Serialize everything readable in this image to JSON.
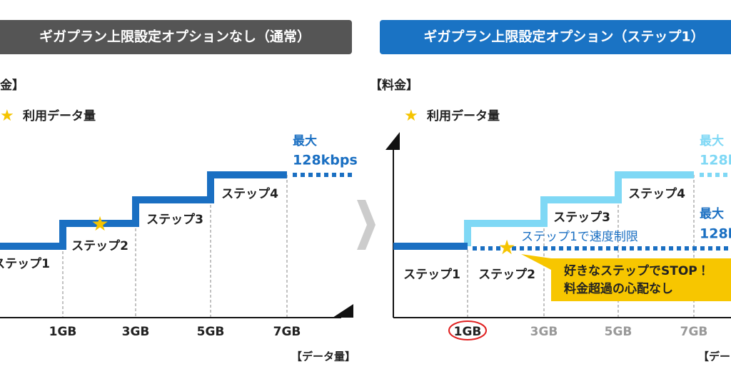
{
  "left": {
    "header": "ギガプラン上限設定オプションなし（通常）",
    "y_label": "金】",
    "legend": "利用データ量",
    "max_label": "最大",
    "speed": "128kbps",
    "steps": [
      "ステップ1",
      "ステップ2",
      "ステップ3",
      "ステップ4"
    ],
    "x_labels": [
      "1GB",
      "3GB",
      "5GB",
      "7GB"
    ],
    "x_title": "【データ量】"
  },
  "right": {
    "header": "ギガプラン上限設定オプション（ステップ1）",
    "y_label": "【料金】",
    "legend": "利用データ量",
    "max_label_1": "最大",
    "speed_1": "128k",
    "max_label_2": "最大",
    "speed_2": "128k",
    "limit_note": "ステップ1で速度制限",
    "steps": [
      "ステップ1",
      "ステップ2",
      "ステップ3",
      "ステップ4"
    ],
    "callout": [
      "好きなステップでSTOP！",
      "料金超過の心配なし"
    ],
    "x_labels": [
      "1GB",
      "3GB",
      "5GB",
      "7GB"
    ],
    "x_title": "【デー"
  }
}
